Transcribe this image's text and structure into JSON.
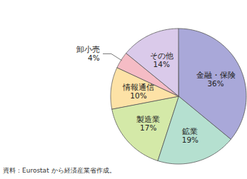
{
  "chart_data": {
    "type": "pie",
    "categories": [
      "金融・保険",
      "鉱業",
      "製造業",
      "情報通信",
      "卸小売",
      "その他"
    ],
    "values": [
      36,
      19,
      17,
      10,
      4,
      14
    ],
    "value_labels": [
      "36%",
      "19%",
      "17%",
      "10%",
      "4%",
      "14%"
    ],
    "colors": [
      "#a9a8d9",
      "#b5e0d0",
      "#d4e9a8",
      "#fde2a6",
      "#f5bcc5",
      "#dacaea"
    ],
    "data_labels": true,
    "caption": "資料：Eurostat から経済産業省作成。"
  }
}
